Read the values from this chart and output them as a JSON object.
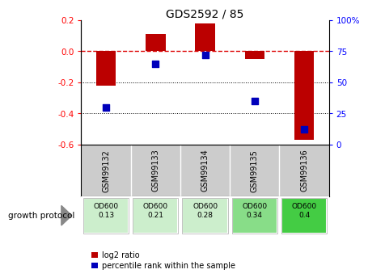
{
  "title": "GDS2592 / 85",
  "categories": [
    "GSM99132",
    "GSM99133",
    "GSM99134",
    "GSM99135",
    "GSM99136"
  ],
  "log2_ratio": [
    -0.22,
    0.11,
    0.18,
    -0.05,
    -0.57
  ],
  "percentile_rank": [
    30,
    65,
    72,
    35,
    12
  ],
  "ylim_left": [
    -0.6,
    0.2
  ],
  "ylim_right": [
    0,
    100
  ],
  "yticks_left": [
    -0.6,
    -0.4,
    -0.2,
    0.0,
    0.2
  ],
  "yticks_right": [
    0,
    25,
    50,
    75,
    100
  ],
  "bar_color": "#bb0000",
  "dot_color": "#0000bb",
  "zero_line_color": "#dd0000",
  "grid_color": "#000000",
  "bg_color": "#ffffff",
  "sample_bg": "#cccccc",
  "protocol_label": "growth protocol",
  "protocol_values": [
    "OD600\n0.13",
    "OD600\n0.21",
    "OD600\n0.28",
    "OD600\n0.34",
    "OD600\n0.4"
  ],
  "protocol_colors": [
    "#cceecc",
    "#cceecc",
    "#cceecc",
    "#88dd88",
    "#44cc44"
  ],
  "legend_red": "log2 ratio",
  "legend_blue": "percentile rank within the sample",
  "bar_width": 0.4
}
